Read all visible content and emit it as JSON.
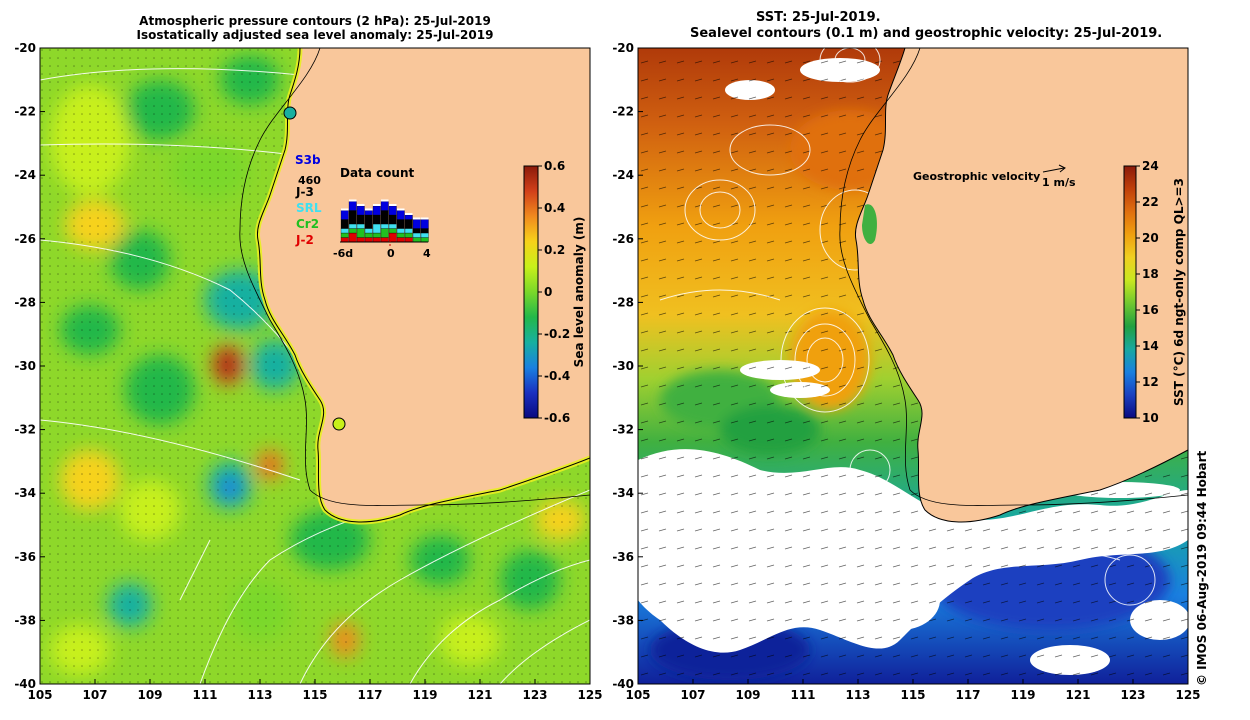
{
  "left_panel": {
    "title_line1": "Atmospheric pressure contours (2 hPa): 25-Jul-2019",
    "title_line2": "Isostatically adjusted sea level anomaly: 25-Jul-2019",
    "colorbar": {
      "label": "Sea level anomaly (m)",
      "ticks": [
        "0.6",
        "0.4",
        "0.2",
        "0",
        "-0.2",
        "-0.4",
        "-0.6"
      ],
      "colors": [
        "#8b1a0a",
        "#d2401a",
        "#f08a1e",
        "#f7d21a",
        "#c8f01a",
        "#7ad82a",
        "#22b84a",
        "#18b0a0",
        "#1a80e0",
        "#1a30c0",
        "#0a0a80"
      ]
    },
    "data_count": {
      "title": "Data count",
      "total": "460",
      "missions": [
        {
          "name": "S3b",
          "color": "#0000e0"
        },
        {
          "name": "J-3",
          "color": "#000000"
        },
        {
          "name": "SRL",
          "color": "#40e0f0"
        },
        {
          "name": "Cr2",
          "color": "#20c020"
        },
        {
          "name": "J-2",
          "color": "#e00000"
        }
      ],
      "axis_ticks": [
        "-6d",
        "0",
        "4"
      ],
      "bars": [
        {
          "S3b": 2,
          "J3": 2,
          "SRL": 1,
          "Cr2": 1,
          "J2": 1
        },
        {
          "S3b": 2,
          "J3": 3,
          "SRL": 1,
          "Cr2": 1,
          "J2": 2
        },
        {
          "S3b": 2,
          "J3": 2,
          "SRL": 1,
          "Cr2": 2,
          "J2": 1
        },
        {
          "S3b": 1,
          "J3": 3,
          "SRL": 1,
          "Cr2": 1,
          "J2": 1
        },
        {
          "S3b": 2,
          "J3": 2,
          "SRL": 2,
          "Cr2": 1,
          "J2": 1
        },
        {
          "S3b": 2,
          "J3": 3,
          "SRL": 1,
          "Cr2": 2,
          "J2": 1
        },
        {
          "S3b": 2,
          "J3": 2,
          "SRL": 1,
          "Cr2": 1,
          "J2": 2
        },
        {
          "S3b": 2,
          "J3": 2,
          "SRL": 1,
          "Cr2": 1,
          "J2": 1
        },
        {
          "S3b": 1,
          "J3": 2,
          "SRL": 1,
          "Cr2": 1,
          "J2": 1
        },
        {
          "S3b": 2,
          "J3": 1,
          "SRL": 1,
          "Cr2": 1,
          "J2": 0
        },
        {
          "S3b": 2,
          "J3": 1,
          "SRL": 1,
          "Cr2": 1,
          "J2": 0
        }
      ]
    }
  },
  "right_panel": {
    "title_line1": "SST: 25-Jul-2019.",
    "title_line2": "Sealevel contours (0.1 m) and geostrophic velocity: 25-Jul-2019.",
    "velocity_legend": "Geostrophic velocity",
    "velocity_scale": "1 m/s",
    "colorbar": {
      "label": "SST (°C) 6d ngt-only comp QL>=3",
      "ticks": [
        "24",
        "22",
        "20",
        "18",
        "16",
        "14",
        "12",
        "10"
      ],
      "colors": [
        "#8b1a0a",
        "#c0400a",
        "#e07010",
        "#f0a010",
        "#f0d020",
        "#c8e820",
        "#70c830",
        "#20a040",
        "#18a8a0",
        "#1a80e0",
        "#1a40c0",
        "#0a0a80"
      ]
    }
  },
  "axes": {
    "x_ticks": [
      "105",
      "107",
      "109",
      "111",
      "113",
      "115",
      "117",
      "119",
      "121",
      "123",
      "125"
    ],
    "y_ticks": [
      "-20",
      "-22",
      "-24",
      "-26",
      "-28",
      "-30",
      "-32",
      "-34",
      "-36",
      "-38",
      "-40"
    ]
  },
  "stamp": "© IMOS 06-Aug-2019 09:44 Hobart",
  "colors": {
    "land": "#f9c79b",
    "ocean_base": "#8ed82a",
    "cloud": "#ffffff"
  }
}
